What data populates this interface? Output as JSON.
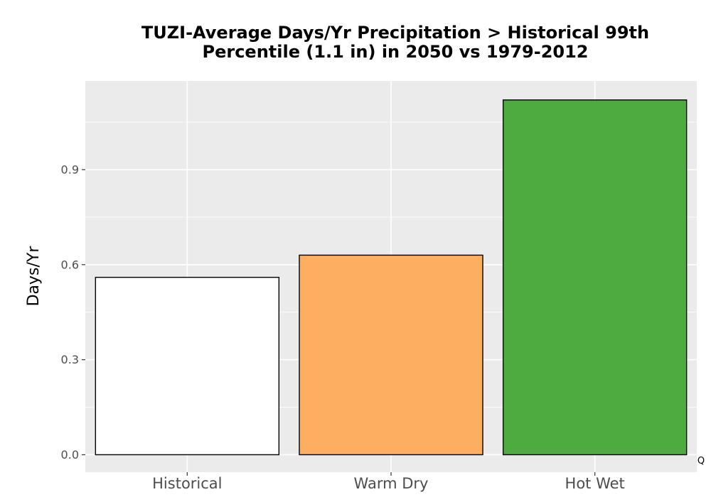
{
  "chart_data": {
    "type": "bar",
    "title_lines": [
      "TUZI-Average Days/Yr Precipitation > Historical 99th",
      "Percentile (1.1 in) in 2050 vs 1979-2012"
    ],
    "xlabel": "",
    "ylabel": "Days/Yr",
    "categories": [
      "Historical",
      "Warm Dry",
      "Hot Wet"
    ],
    "values": [
      0.56,
      0.63,
      1.12
    ],
    "colors": [
      "#ffffff",
      "#fdae61",
      "#4dab40"
    ],
    "bar_outline_color": "#000000",
    "panel_background": "#ebebeb",
    "grid_color": "#ffffff",
    "grid": true,
    "ylim": [
      -0.055,
      1.18
    ],
    "yticks": [
      0.0,
      0.3,
      0.6,
      0.9
    ],
    "ytick_labels": [
      "0.0",
      "0.3",
      "0.6",
      "0.9"
    ],
    "corner_mark": "Q"
  }
}
